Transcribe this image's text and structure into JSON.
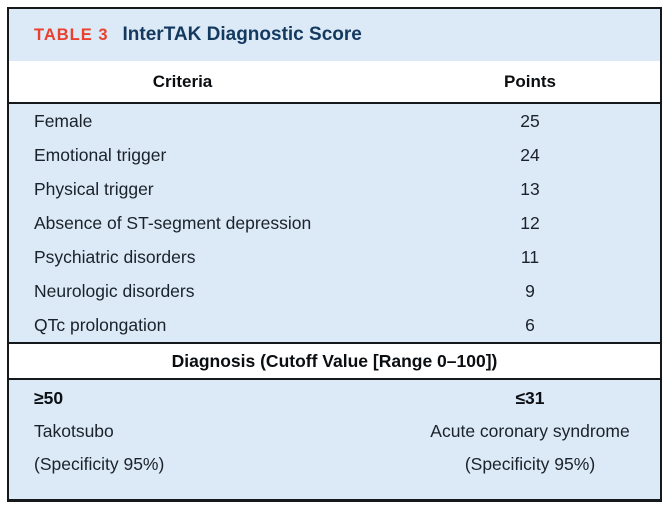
{
  "colors": {
    "accent_red": "#e8402c",
    "accent_navy": "#14395f",
    "band_blue": "#dce9f6"
  },
  "table": {
    "label": "TABLE 3",
    "title": "InterTAK Diagnostic Score",
    "columns": {
      "criteria": "Criteria",
      "points": "Points"
    },
    "rows": [
      {
        "criteria": "Female",
        "points": "25"
      },
      {
        "criteria": "Emotional trigger",
        "points": "24"
      },
      {
        "criteria": "Physical trigger",
        "points": "13"
      },
      {
        "criteria": "Absence of ST-segment depression",
        "points": "12"
      },
      {
        "criteria": "Psychiatric disorders",
        "points": "11"
      },
      {
        "criteria": "Neurologic disorders",
        "points": "9"
      },
      {
        "criteria": "QTc prolongation",
        "points": "6"
      }
    ],
    "diagnosis_header": "Diagnosis (Cutoff Value [Range 0–100])",
    "diagnosis": {
      "left": {
        "cutoff": "≥50",
        "name": "Takotsubo",
        "specificity": "(Specificity 95%)"
      },
      "right": {
        "cutoff": "≤31",
        "name": "Acute coronary syndrome",
        "specificity": "(Specificity 95%)"
      }
    }
  }
}
